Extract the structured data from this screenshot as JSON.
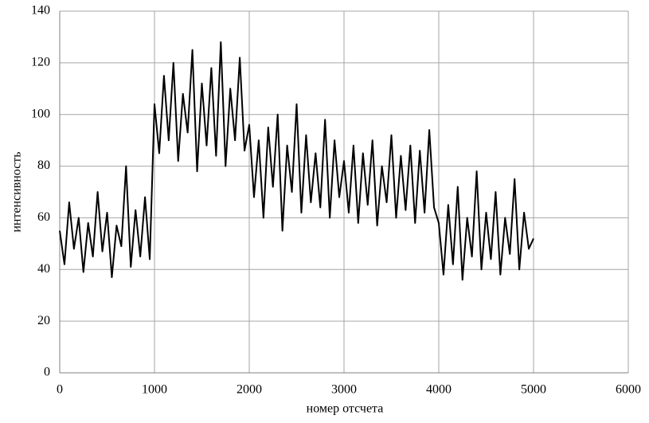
{
  "chart_data": {
    "type": "line",
    "xlabel": "номер отсчета",
    "ylabel": "интенсивность",
    "x": [
      0,
      50,
      100,
      150,
      200,
      250,
      300,
      350,
      400,
      450,
      500,
      550,
      600,
      650,
      700,
      750,
      800,
      850,
      900,
      950,
      1000,
      1050,
      1100,
      1150,
      1200,
      1250,
      1300,
      1350,
      1400,
      1450,
      1500,
      1550,
      1600,
      1650,
      1700,
      1750,
      1800,
      1850,
      1900,
      1950,
      2000,
      2050,
      2100,
      2150,
      2200,
      2250,
      2300,
      2350,
      2400,
      2450,
      2500,
      2550,
      2600,
      2650,
      2700,
      2750,
      2800,
      2850,
      2900,
      2950,
      3000,
      3050,
      3100,
      3150,
      3200,
      3250,
      3300,
      3350,
      3400,
      3450,
      3500,
      3550,
      3600,
      3650,
      3700,
      3750,
      3800,
      3850,
      3900,
      3950,
      4000,
      4050,
      4100,
      4150,
      4200,
      4250,
      4300,
      4350,
      4400,
      4450,
      4500,
      4550,
      4600,
      4650,
      4700,
      4750,
      4800,
      4850,
      4900,
      4950,
      5000
    ],
    "series": [
      {
        "color": "#000000",
        "values": [
          55,
          42,
          66,
          48,
          60,
          39,
          58,
          45,
          70,
          47,
          62,
          37,
          57,
          49,
          80,
          41,
          63,
          45,
          68,
          44,
          104,
          85,
          115,
          90,
          120,
          82,
          108,
          93,
          125,
          78,
          112,
          88,
          118,
          84,
          128,
          80,
          110,
          90,
          122,
          86,
          96,
          68,
          90,
          60,
          95,
          72,
          100,
          55,
          88,
          70,
          104,
          62,
          92,
          66,
          85,
          64,
          98,
          60,
          90,
          68,
          82,
          62,
          88,
          58,
          85,
          65,
          90,
          57,
          80,
          66,
          92,
          60,
          84,
          63,
          88,
          58,
          86,
          62,
          94,
          64,
          58,
          38,
          65,
          42,
          72,
          36,
          60,
          45,
          78,
          40,
          62,
          44,
          70,
          38,
          60,
          46,
          75,
          40,
          62,
          48,
          52
        ]
      }
    ],
    "xlim": [
      0,
      6000
    ],
    "xticks": [
      0,
      1000,
      2000,
      3000,
      4000,
      5000,
      6000
    ],
    "ylim": [
      0,
      140
    ],
    "yticks": [
      0,
      20,
      40,
      60,
      80,
      100,
      120,
      140
    ],
    "grid": true
  }
}
